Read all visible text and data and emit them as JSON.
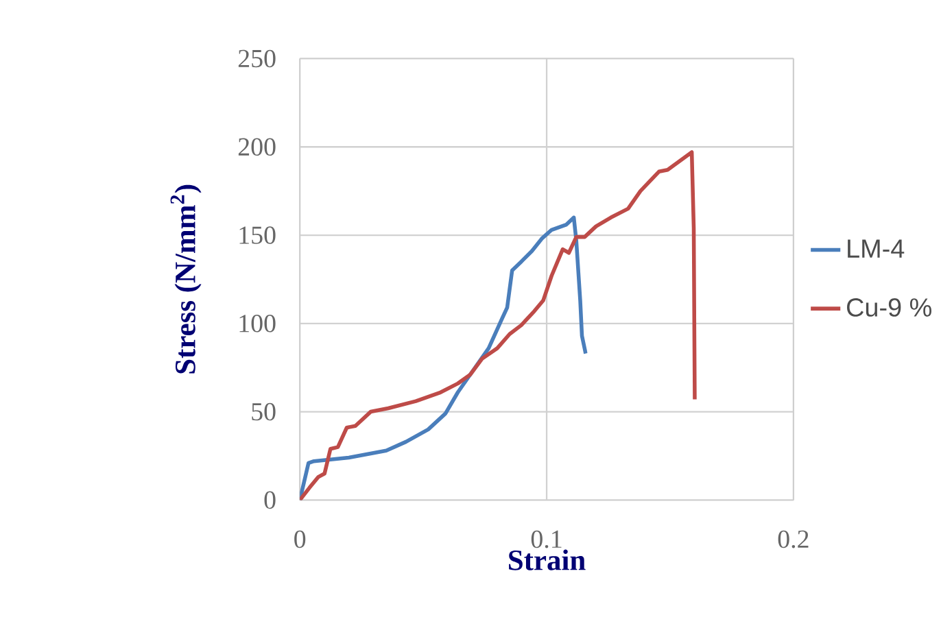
{
  "chart_data": {
    "type": "line",
    "xlabel": "Strain",
    "ylabel": "Stress (N/mm$^{2}$)",
    "xlim": [
      0,
      0.2
    ],
    "xticks": [
      0,
      0.1,
      0.2
    ],
    "ylim": [
      0,
      250
    ],
    "yticks": [
      0,
      50,
      100,
      150,
      200,
      250
    ],
    "grid": true,
    "legend": "right",
    "marker": "none",
    "line_style": "solid",
    "series": [
      {
        "name": "LM-4",
        "color": "#4a7ebb",
        "x": [
          0,
          0.0035,
          0.0057,
          0.0198,
          0.035,
          0.043,
          0.052,
          0.059,
          0.064,
          0.069,
          0.0765,
          0.082,
          0.084,
          0.086,
          0.0897,
          0.094,
          0.098,
          0.102,
          0.108,
          0.111,
          0.112,
          0.1136,
          0.1143,
          0.1158
        ],
        "values": [
          0,
          21,
          22,
          24,
          28,
          33,
          40,
          49,
          61,
          71,
          86,
          103,
          109,
          130,
          135,
          141,
          148,
          153,
          156,
          160,
          147,
          113,
          93,
          83
        ]
      },
      {
        "name": "Cu-9 %",
        "color": "#be4b48",
        "x": [
          0,
          0.0039,
          0.0074,
          0.01,
          0.0124,
          0.0154,
          0.019,
          0.0225,
          0.0287,
          0.0358,
          0.047,
          0.057,
          0.064,
          0.069,
          0.0738,
          0.08,
          0.085,
          0.0897,
          0.095,
          0.0986,
          0.102,
          0.1065,
          0.109,
          0.112,
          0.1154,
          0.12,
          0.126,
          0.133,
          0.138,
          0.1455,
          0.149,
          0.1588,
          0.1596,
          0.16
        ],
        "values": [
          0,
          7,
          13,
          15,
          29,
          30,
          41,
          42,
          50,
          52,
          56,
          61,
          66,
          71,
          80,
          86,
          94,
          99,
          107,
          113,
          127,
          142,
          140,
          149,
          149,
          155,
          160,
          165,
          175,
          186,
          187,
          197,
          154,
          57
        ]
      }
    ]
  }
}
